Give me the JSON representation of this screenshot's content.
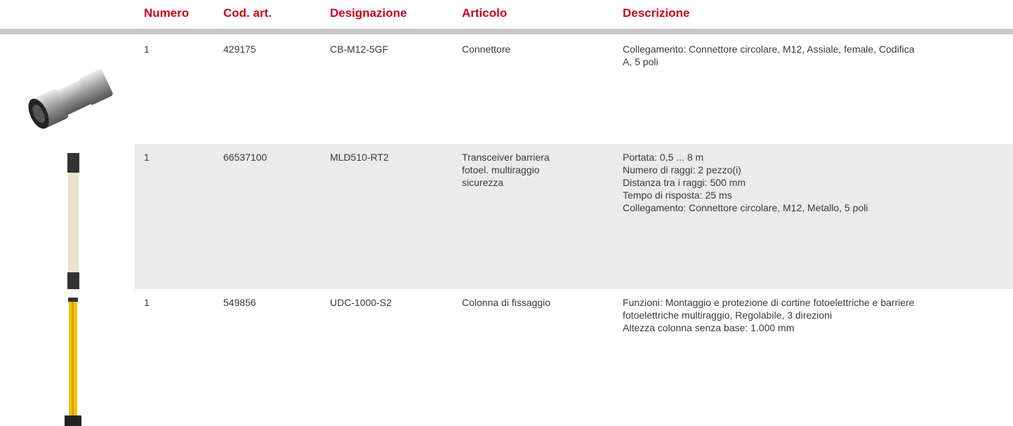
{
  "table": {
    "headers": [
      "Numero",
      "Cod. art.",
      "Designazione",
      "Articolo",
      "Descrizione"
    ],
    "rows": [
      {
        "cells": [
          "1",
          "429175",
          "CB-M12-5GF",
          "Connettore"
        ],
        "description": [
          "Collegamento: Connettore circolare, M12, Assiale, female, Codifica",
          "A, 5 poli"
        ]
      },
      {
        "cells": [
          "1",
          "66537100",
          "MLD510-RT2",
          "Transceiver barriera fotoel. multiraggio sicurezza"
        ],
        "description": [
          "Portata: 0,5 ... 8 m",
          "Numero di raggi: 2 pezzo(i)",
          "Distanza tra i raggi: 500 mm",
          "Tempo di risposta: 25 ms",
          "Collegamento: Connettore circolare, M12, Metallo, 5 poli"
        ]
      },
      {
        "cells": [
          "1",
          "549856",
          "UDC-1000-S2",
          "Colonna di fissaggio"
        ],
        "description": [
          "Funzioni: Montaggio e protezione di cortine fotoelettriche e barriere",
          "fotoelettriche multiraggio, Regolabile, 3 direzioni",
          "Altezza colonna senza base: 1.000 mm"
        ]
      }
    ]
  }
}
